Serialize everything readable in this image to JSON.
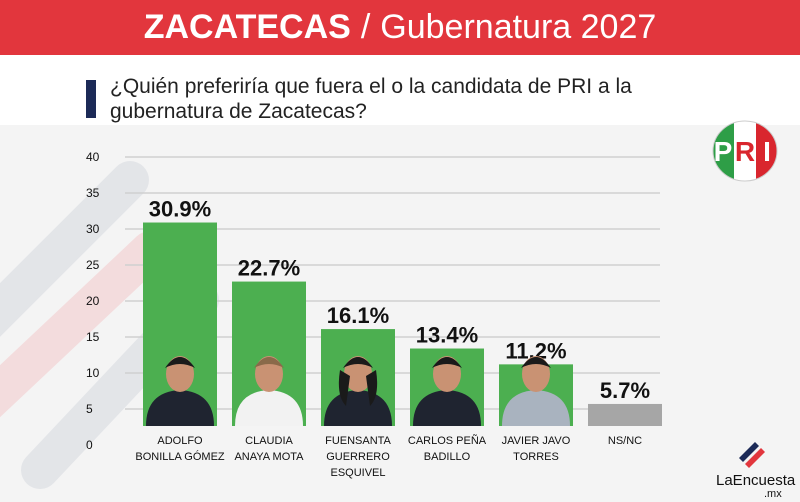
{
  "header": {
    "title_bold": "ZACATECAS",
    "separator": "/",
    "title_rest": "Gubernatura 2027",
    "bg_color": "#e2363d"
  },
  "question": "¿Quién preferiría que fuera el o la candidata de PRI a la gubernatura de Zacatecas?",
  "party_logo": {
    "text": "PRI",
    "icon": "pri-logo-icon",
    "colors": [
      "#2e9e47",
      "#ffffff",
      "#d9262e"
    ]
  },
  "brand": {
    "name": "LaEncuesta",
    "tld": ".mx",
    "icon": "la-encuesta-logo-icon"
  },
  "chart_data": {
    "type": "bar",
    "title": "",
    "xlabel": "",
    "ylabel": "",
    "ylim": [
      0,
      40
    ],
    "yticks": [
      0,
      5,
      10,
      15,
      20,
      25,
      30,
      35,
      40
    ],
    "grid": true,
    "categories": [
      [
        "ADOLFO",
        "BONILLA GÓMEZ"
      ],
      [
        "CLAUDIA",
        "ANAYA MOTA"
      ],
      [
        "FUENSANTA",
        "GUERRERO",
        "ESQUIVEL"
      ],
      [
        "CARLOS PEÑA",
        "BADILLO"
      ],
      [
        "JAVIER JAVO",
        "TORRES"
      ],
      [
        "NS/NC"
      ]
    ],
    "values": [
      30.9,
      22.7,
      16.1,
      13.4,
      11.2,
      5.7
    ],
    "value_labels": [
      "30.9%",
      "22.7%",
      "16.1%",
      "13.4%",
      "11.2%",
      "5.7%"
    ],
    "colors": [
      "#4caf50",
      "#4caf50",
      "#4caf50",
      "#4caf50",
      "#4caf50",
      "#a6a6a6"
    ],
    "has_photo": [
      true,
      true,
      true,
      true,
      true,
      false
    ]
  }
}
